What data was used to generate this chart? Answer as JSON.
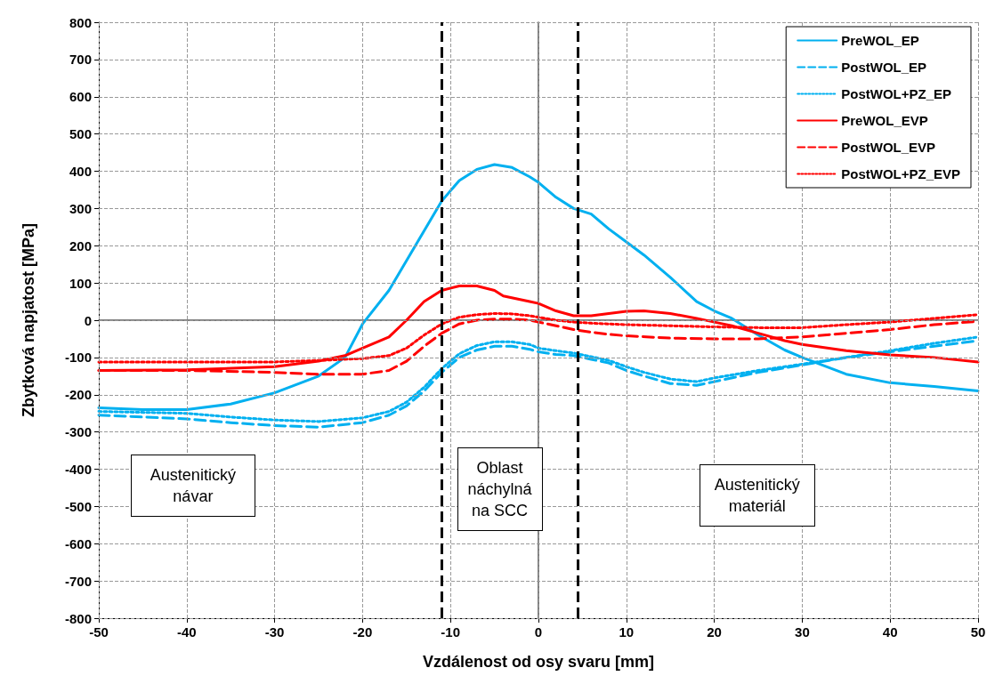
{
  "chart_data": {
    "type": "line",
    "xlabel": "Vzdálenost od osy svaru [mm]",
    "ylabel": "Zbytková napjatost [MPa]",
    "xlim": [
      -50,
      50
    ],
    "xticks": [
      -50,
      -40,
      -30,
      -20,
      -10,
      0,
      10,
      20,
      30,
      40,
      50
    ],
    "ylim": [
      -800,
      800
    ],
    "yticks": [
      -800,
      -700,
      -600,
      -500,
      -400,
      -300,
      -200,
      -100,
      0,
      100,
      200,
      300,
      400,
      500,
      600,
      700,
      800
    ],
    "grid": true,
    "legend": "top right",
    "marker": "none",
    "series": [
      {
        "name": "PreWOL_EP",
        "color": "#00b0f0",
        "line_style": "solid",
        "x": [
          -50,
          -45,
          -40,
          -35,
          -30,
          -25,
          -22,
          -20,
          -17,
          -15,
          -13,
          -11,
          -9,
          -7,
          -5,
          -3,
          -1,
          0,
          2,
          4,
          6,
          8,
          10,
          12,
          15,
          18,
          20,
          22,
          25,
          28,
          30,
          35,
          40,
          45,
          50
        ],
        "values": [
          -235,
          -240,
          -240,
          -225,
          -195,
          -150,
          -100,
          -10,
          80,
          160,
          240,
          320,
          375,
          405,
          418,
          410,
          385,
          370,
          330,
          300,
          285,
          245,
          210,
          175,
          115,
          50,
          25,
          5,
          -40,
          -80,
          -100,
          -145,
          -168,
          -178,
          -190
        ]
      },
      {
        "name": "PostWOL_EP",
        "color": "#00b0f0",
        "line_style": "dashed",
        "x": [
          -50,
          -40,
          -35,
          -30,
          -25,
          -20,
          -17,
          -15,
          -13,
          -11,
          -9,
          -7,
          -5,
          -3,
          -1,
          0,
          2,
          4,
          6,
          8,
          10,
          12,
          15,
          18,
          20,
          25,
          30,
          35,
          40,
          45,
          50
        ],
        "values": [
          -255,
          -265,
          -275,
          -283,
          -287,
          -275,
          -255,
          -230,
          -190,
          -140,
          -100,
          -80,
          -70,
          -70,
          -78,
          -85,
          -92,
          -95,
          -105,
          -115,
          -135,
          -150,
          -170,
          -175,
          -165,
          -140,
          -120,
          -100,
          -85,
          -70,
          -55
        ]
      },
      {
        "name": "PostWOL+PZ_EP",
        "color": "#00b0f0",
        "line_style": "dotted",
        "x": [
          -50,
          -40,
          -35,
          -30,
          -25,
          -20,
          -17,
          -15,
          -13,
          -11,
          -9,
          -7,
          -5,
          -3,
          -1,
          0,
          2,
          4,
          6,
          8,
          10,
          12,
          15,
          18,
          20,
          25,
          30,
          35,
          40,
          45,
          50
        ],
        "values": [
          -245,
          -250,
          -260,
          -268,
          -272,
          -262,
          -245,
          -220,
          -180,
          -130,
          -90,
          -68,
          -58,
          -58,
          -65,
          -75,
          -82,
          -88,
          -98,
          -108,
          -125,
          -140,
          -158,
          -165,
          -155,
          -135,
          -118,
          -100,
          -82,
          -62,
          -45
        ]
      },
      {
        "name": "PreWOL_EVP",
        "color": "#ff0000",
        "line_style": "solid",
        "x": [
          -50,
          -40,
          -30,
          -25,
          -22,
          -20,
          -17,
          -15,
          -13,
          -11,
          -9,
          -7,
          -5,
          -4,
          -1,
          0,
          2,
          4,
          6,
          8,
          10,
          12,
          15,
          18,
          20,
          22,
          25,
          28,
          30,
          35,
          40,
          45,
          50
        ],
        "values": [
          -135,
          -133,
          -125,
          -110,
          -95,
          -75,
          -45,
          0,
          50,
          80,
          92,
          92,
          80,
          65,
          50,
          45,
          25,
          12,
          12,
          18,
          24,
          25,
          18,
          5,
          -5,
          -15,
          -35,
          -55,
          -65,
          -82,
          -93,
          -100,
          -112
        ]
      },
      {
        "name": "PostWOL_EVP",
        "color": "#ff0000",
        "line_style": "dashed",
        "x": [
          -50,
          -40,
          -30,
          -25,
          -20,
          -17,
          -15,
          -13,
          -11,
          -9,
          -7,
          -5,
          -3,
          -1,
          0,
          2,
          4,
          6,
          8,
          10,
          15,
          20,
          25,
          30,
          35,
          40,
          45,
          50
        ],
        "values": [
          -135,
          -135,
          -140,
          -145,
          -145,
          -135,
          -110,
          -70,
          -35,
          -10,
          0,
          3,
          3,
          0,
          -5,
          -15,
          -25,
          -32,
          -38,
          -42,
          -48,
          -50,
          -50,
          -45,
          -35,
          -25,
          -12,
          -3
        ]
      },
      {
        "name": "PostWOL+PZ_EVP",
        "color": "#ff0000",
        "line_style": "dotted",
        "x": [
          -50,
          -40,
          -30,
          -25,
          -20,
          -17,
          -15,
          -13,
          -11,
          -9,
          -7,
          -5,
          -3,
          -1,
          0,
          2,
          4,
          6,
          10,
          15,
          20,
          25,
          30,
          35,
          40,
          45,
          50
        ],
        "values": [
          -112,
          -112,
          -112,
          -108,
          -103,
          -95,
          -75,
          -40,
          -10,
          8,
          15,
          18,
          17,
          12,
          8,
          0,
          -5,
          -8,
          -12,
          -15,
          -18,
          -20,
          -20,
          -12,
          -5,
          5,
          15
        ]
      }
    ],
    "ref_lines": [
      {
        "axis": "x",
        "value": -11,
        "color": "#000000",
        "line_style": "dashed"
      },
      {
        "axis": "x",
        "value": 4.5,
        "color": "#000000",
        "line_style": "dashed"
      }
    ],
    "annotations": [
      "Austenitický\nnávar",
      "Oblast\nnáchylná\nna SCC",
      "Austenitický\nmateriál"
    ]
  }
}
